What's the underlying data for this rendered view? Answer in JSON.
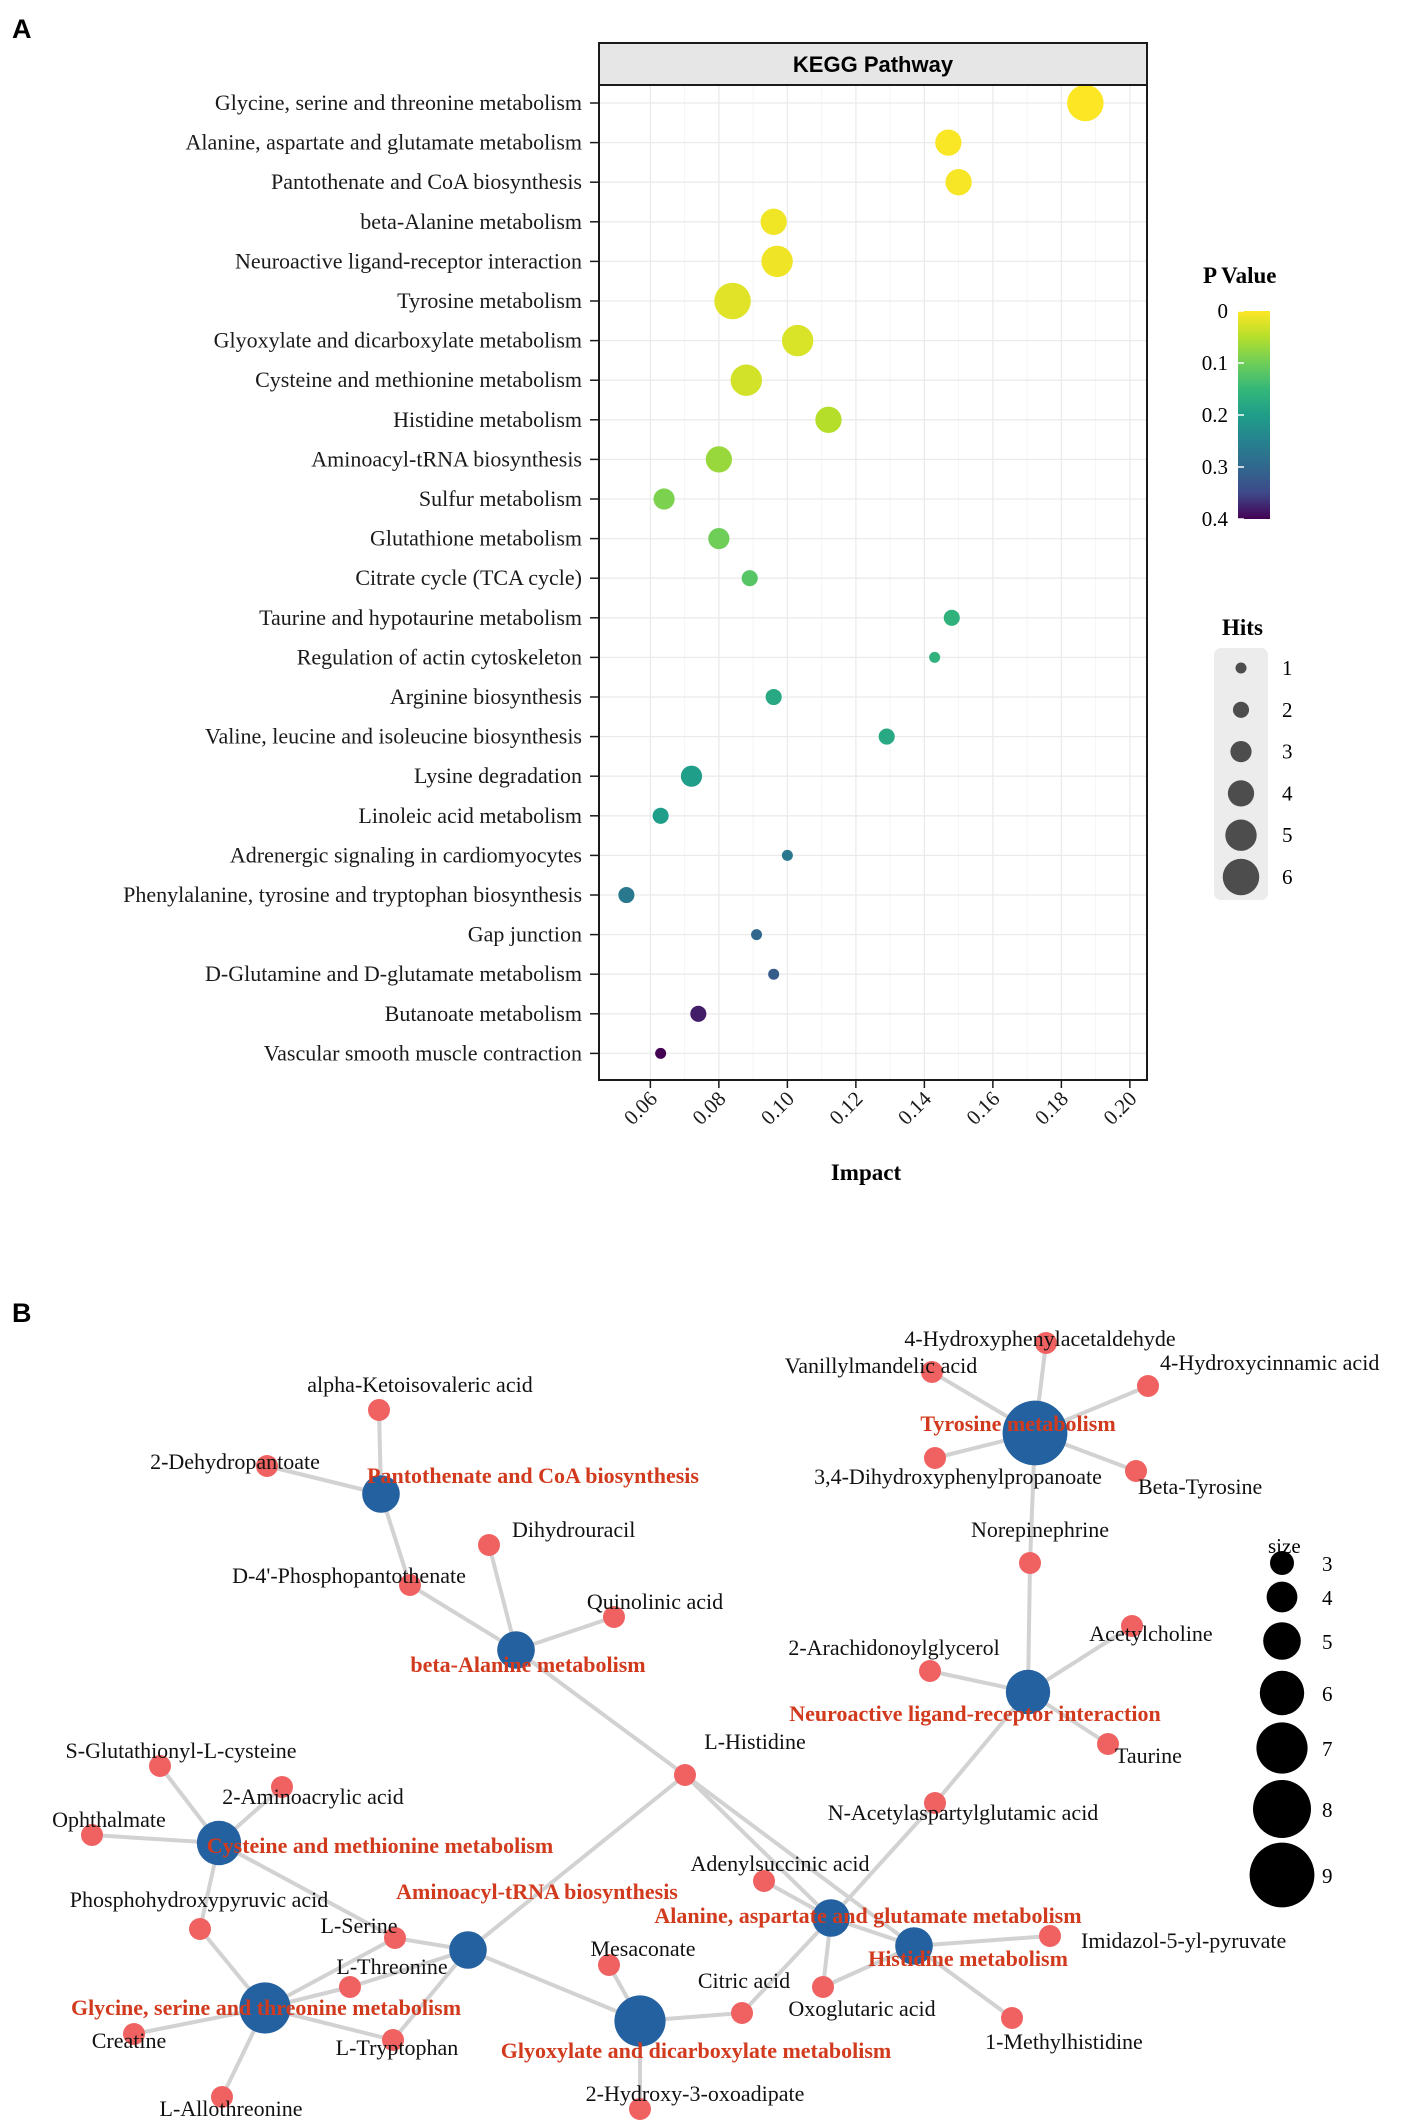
{
  "panels": {
    "a": "A",
    "b": "B"
  },
  "chart_data": [
    {
      "type": "scatter",
      "title": "KEGG Pathway",
      "xlabel": "Impact",
      "ylabel": "",
      "xlim": [
        0.045,
        0.205
      ],
      "xticks": [
        "0.06",
        "0.08",
        "0.10",
        "0.12",
        "0.14",
        "0.16",
        "0.18",
        "0.20"
      ],
      "xtick_values": [
        0.06,
        0.08,
        0.1,
        0.12,
        0.14,
        0.16,
        0.18,
        0.2
      ],
      "grid": true,
      "color_legend": {
        "title": "P Value",
        "ticks": [
          "0",
          "0.1",
          "0.2",
          "0.3",
          "0.4"
        ],
        "tick_values": [
          0,
          0.1,
          0.2,
          0.3,
          0.4
        ],
        "palette": "viridis (reversed)"
      },
      "size_legend": {
        "title": "Hits",
        "labels": [
          "1",
          "2",
          "3",
          "4",
          "5",
          "6"
        ],
        "values": [
          1,
          2,
          3,
          4,
          5,
          6
        ]
      },
      "points": [
        {
          "pathway": "Glycine, serine and threonine metabolism",
          "impact": 0.187,
          "p": 0.0,
          "hits": 6
        },
        {
          "pathway": "Alanine, aspartate and glutamate metabolism",
          "impact": 0.147,
          "p": 0.003,
          "hits": 4
        },
        {
          "pathway": "Pantothenate and CoA biosynthesis",
          "impact": 0.15,
          "p": 0.005,
          "hits": 4
        },
        {
          "pathway": "beta-Alanine metabolism",
          "impact": 0.096,
          "p": 0.008,
          "hits": 4
        },
        {
          "pathway": "Neuroactive ligand-receptor interaction",
          "impact": 0.097,
          "p": 0.01,
          "hits": 5
        },
        {
          "pathway": "Tyrosine metabolism",
          "impact": 0.084,
          "p": 0.02,
          "hits": 6
        },
        {
          "pathway": "Glyoxylate and dicarboxylate metabolism",
          "impact": 0.103,
          "p": 0.025,
          "hits": 5
        },
        {
          "pathway": "Cysteine and methionine metabolism",
          "impact": 0.088,
          "p": 0.03,
          "hits": 5
        },
        {
          "pathway": "Histidine metabolism",
          "impact": 0.112,
          "p": 0.05,
          "hits": 4
        },
        {
          "pathway": "Aminoacyl-tRNA biosynthesis",
          "impact": 0.08,
          "p": 0.07,
          "hits": 4
        },
        {
          "pathway": "Sulfur metabolism",
          "impact": 0.064,
          "p": 0.09,
          "hits": 3
        },
        {
          "pathway": "Glutathione metabolism",
          "impact": 0.08,
          "p": 0.1,
          "hits": 3
        },
        {
          "pathway": "Citrate cycle (TCA cycle)",
          "impact": 0.089,
          "p": 0.12,
          "hits": 2
        },
        {
          "pathway": "Taurine and hypotaurine metabolism",
          "impact": 0.148,
          "p": 0.16,
          "hits": 2
        },
        {
          "pathway": "Regulation of actin cytoskeleton",
          "impact": 0.143,
          "p": 0.16,
          "hits": 1
        },
        {
          "pathway": "Arginine biosynthesis",
          "impact": 0.096,
          "p": 0.18,
          "hits": 2
        },
        {
          "pathway": "Valine, leucine and isoleucine biosynthesis",
          "impact": 0.129,
          "p": 0.18,
          "hits": 2
        },
        {
          "pathway": "Lysine degradation",
          "impact": 0.072,
          "p": 0.2,
          "hits": 3
        },
        {
          "pathway": "Linoleic acid metabolism",
          "impact": 0.063,
          "p": 0.2,
          "hits": 2
        },
        {
          "pathway": "Adrenergic signaling in cardiomyocytes",
          "impact": 0.1,
          "p": 0.27,
          "hits": 1
        },
        {
          "pathway": "Phenylalanine, tyrosine and tryptophan biosynthesis",
          "impact": 0.053,
          "p": 0.27,
          "hits": 2
        },
        {
          "pathway": "Gap junction",
          "impact": 0.091,
          "p": 0.3,
          "hits": 1
        },
        {
          "pathway": "D-Glutamine and D-glutamate metabolism",
          "impact": 0.096,
          "p": 0.32,
          "hits": 1
        },
        {
          "pathway": "Butanoate metabolism",
          "impact": 0.074,
          "p": 0.38,
          "hits": 2
        },
        {
          "pathway": "Vascular smooth muscle contraction",
          "impact": 0.063,
          "p": 0.4,
          "hits": 1
        }
      ]
    },
    {
      "type": "network",
      "size_legend": {
        "title": "size",
        "values": [
          3,
          4,
          5,
          6,
          7,
          8,
          9
        ]
      },
      "pathway_color": "#2361a0",
      "metabolite_color": "#f06262",
      "label_color": "#d23a1e",
      "pathway_nodes": [
        {
          "id": "pant",
          "label": "Pantothenate and CoA biosynthesis",
          "size": 5
        },
        {
          "id": "balan",
          "label": "beta-Alanine metabolism",
          "size": 5
        },
        {
          "id": "tyr",
          "label": "Tyrosine metabolism",
          "size": 9
        },
        {
          "id": "neuro",
          "label": "Neuroactive ligand-receptor interaction",
          "size": 6
        },
        {
          "id": "cys",
          "label": "Cysteine and methionine metabolism",
          "size": 6
        },
        {
          "id": "amino",
          "label": "Aminoacyl-tRNA biosynthesis",
          "size": 5
        },
        {
          "id": "gly",
          "label": "Glycine, serine and threonine metabolism",
          "size": 7
        },
        {
          "id": "glyox",
          "label": "Glyoxylate and dicarboxylate metabolism",
          "size": 7
        },
        {
          "id": "ala",
          "label": "Alanine, aspartate and glutamate metabolism",
          "size": 5
        },
        {
          "id": "his",
          "label": "Histidine metabolism",
          "size": 5
        }
      ],
      "metabolite_nodes": [
        {
          "id": "aki",
          "label": "alpha-Ketoisovaleric acid"
        },
        {
          "id": "ddp",
          "label": "2-Dehydropantoate"
        },
        {
          "id": "dhu",
          "label": "Dihydrouracil"
        },
        {
          "id": "d4p",
          "label": "D-4'-Phosphopantothenate"
        },
        {
          "id": "quin",
          "label": "Quinolinic acid"
        },
        {
          "id": "hpa",
          "label": "4-Hydroxyphenylacetaldehyde"
        },
        {
          "id": "vma",
          "label": "Vanillylmandelic acid"
        },
        {
          "id": "hca",
          "label": "4-Hydroxycinnamic acid"
        },
        {
          "id": "dhp",
          "label": "3,4-Dihydroxyphenylpropanoate"
        },
        {
          "id": "btyr",
          "label": "Beta-Tyrosine"
        },
        {
          "id": "nor",
          "label": "Norepinephrine"
        },
        {
          "id": "arach",
          "label": "2-Arachidonoylglycerol"
        },
        {
          "id": "ach",
          "label": "Acetylcholine"
        },
        {
          "id": "tau",
          "label": "Taurine"
        },
        {
          "id": "lhis",
          "label": "L-Histidine"
        },
        {
          "id": "nag",
          "label": "N-Acetylaspartylglutamic acid"
        },
        {
          "id": "sglu",
          "label": "S-Glutathionyl-L-cysteine"
        },
        {
          "id": "amac",
          "label": "2-Aminoacrylic acid"
        },
        {
          "id": "oph",
          "label": "Ophthalmate"
        },
        {
          "id": "php",
          "label": "Phosphohydroxypyruvic acid"
        },
        {
          "id": "ade",
          "label": "Adenylsuccinic acid"
        },
        {
          "id": "ser",
          "label": "L-Serine"
        },
        {
          "id": "thr",
          "label": "L-Threonine"
        },
        {
          "id": "mes",
          "label": "Mesaconate"
        },
        {
          "id": "cit",
          "label": "Citric acid"
        },
        {
          "id": "imid",
          "label": "Imidazol-5-yl-pyruvate"
        },
        {
          "id": "oxo",
          "label": "Oxoglutaric acid"
        },
        {
          "id": "crea",
          "label": "Creatine"
        },
        {
          "id": "trp",
          "label": "L-Tryptophan"
        },
        {
          "id": "mhis",
          "label": "1-Methylhistidine"
        },
        {
          "id": "allo",
          "label": "L-Allothreonine"
        },
        {
          "id": "hox",
          "label": "2-Hydroxy-3-oxoadipate"
        }
      ],
      "edges": [
        [
          "pant",
          "aki"
        ],
        [
          "pant",
          "ddp"
        ],
        [
          "pant",
          "d4p"
        ],
        [
          "balan",
          "dhu"
        ],
        [
          "balan",
          "d4p"
        ],
        [
          "balan",
          "quin"
        ],
        [
          "balan",
          "lhis"
        ],
        [
          "tyr",
          "hpa"
        ],
        [
          "tyr",
          "vma"
        ],
        [
          "tyr",
          "hca"
        ],
        [
          "tyr",
          "dhp"
        ],
        [
          "tyr",
          "btyr"
        ],
        [
          "tyr",
          "nor"
        ],
        [
          "neuro",
          "nor"
        ],
        [
          "neuro",
          "arach"
        ],
        [
          "neuro",
          "ach"
        ],
        [
          "neuro",
          "tau"
        ],
        [
          "neuro",
          "nag"
        ],
        [
          "cys",
          "sglu"
        ],
        [
          "cys",
          "amac"
        ],
        [
          "cys",
          "oph"
        ],
        [
          "cys",
          "php"
        ],
        [
          "cys",
          "ser"
        ],
        [
          "gly",
          "php"
        ],
        [
          "gly",
          "ser"
        ],
        [
          "gly",
          "thr"
        ],
        [
          "gly",
          "crea"
        ],
        [
          "gly",
          "trp"
        ],
        [
          "gly",
          "allo"
        ],
        [
          "amino",
          "ser"
        ],
        [
          "amino",
          "thr"
        ],
        [
          "amino",
          "trp"
        ],
        [
          "amino",
          "lhis"
        ],
        [
          "glyox",
          "amino"
        ],
        [
          "glyox",
          "mes"
        ],
        [
          "glyox",
          "cit"
        ],
        [
          "glyox",
          "hox"
        ],
        [
          "ala",
          "nag"
        ],
        [
          "ala",
          "ade"
        ],
        [
          "ala",
          "cit"
        ],
        [
          "ala",
          "oxo"
        ],
        [
          "ala",
          "lhis"
        ],
        [
          "ala",
          "his"
        ],
        [
          "his",
          "lhis"
        ],
        [
          "his",
          "oxo"
        ],
        [
          "his",
          "imid"
        ],
        [
          "his",
          "mhis"
        ]
      ]
    }
  ]
}
